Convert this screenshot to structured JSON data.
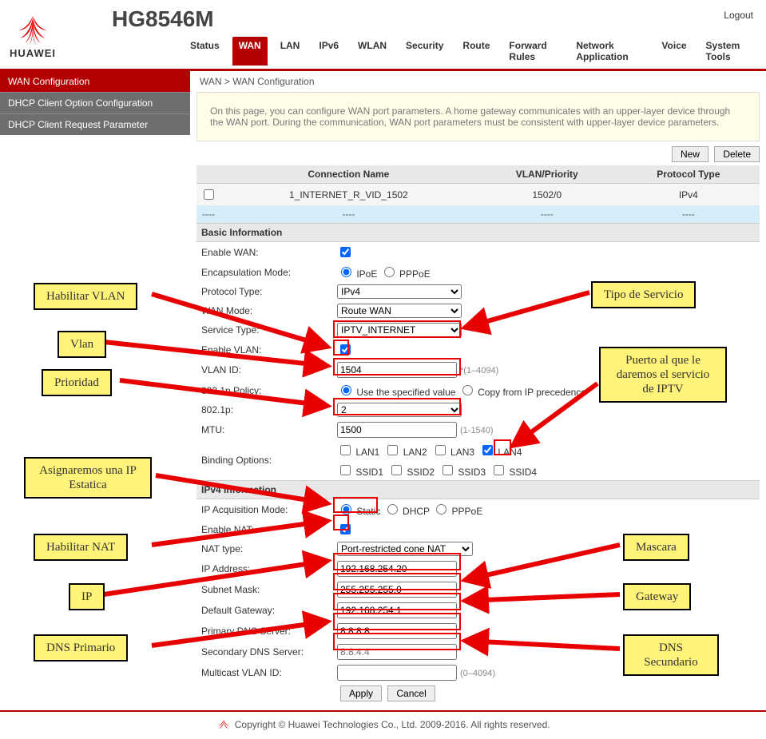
{
  "header": {
    "brand": "HUAWEI",
    "model": "HG8546M",
    "logout": "Logout"
  },
  "nav": {
    "items": [
      "Status",
      "WAN",
      "LAN",
      "IPv6",
      "WLAN",
      "Security",
      "Route",
      "Forward Rules",
      "Network Application",
      "Voice",
      "System Tools"
    ],
    "active_index": 1
  },
  "sidebar": {
    "items": [
      "WAN Configuration",
      "DHCP Client Option Configuration",
      "DHCP Client Request Parameter"
    ],
    "active_index": 0
  },
  "breadcrumb": "WAN > WAN Configuration",
  "info_text": "On this page, you can configure WAN port parameters. A home gateway communicates with an upper-layer device through the WAN port. During the communication, WAN port parameters must be consistent with upper-layer device parameters.",
  "buttons": {
    "new": "New",
    "delete": "Delete",
    "apply": "Apply",
    "cancel": "Cancel"
  },
  "conn_table": {
    "headers": [
      "",
      "Connection Name",
      "VLAN/Priority",
      "Protocol Type"
    ],
    "row": {
      "name": "1_INTERNET_R_VID_1502",
      "vlan": "1502/0",
      "proto": "IPv4"
    },
    "dash": "----"
  },
  "sections": {
    "basic": "Basic Information",
    "ipv4": "IPv4 Information"
  },
  "labels": {
    "enable_wan": "Enable WAN:",
    "encap": "Encapsulation Mode:",
    "proto": "Protocol Type:",
    "wan_mode": "WAN Mode:",
    "service_type": "Service Type:",
    "enable_vlan": "Enable VLAN:",
    "vlan_id": "VLAN ID:",
    "policy": "802.1p Policy:",
    "p8021": "802.1p:",
    "mtu": "MTU:",
    "binding": "Binding Options:",
    "ip_acq": "IP Acquisition Mode:",
    "enable_nat": "Enable NAT:",
    "nat_type": "NAT type:",
    "ip_addr": "IP Address:",
    "subnet": "Subnet Mask:",
    "gateway": "Default Gateway:",
    "dns1": "Primary DNS Server:",
    "dns2": "Secondary DNS Server:",
    "mcast": "Multicast VLAN ID:"
  },
  "values": {
    "encap_ipoe": "IPoE",
    "encap_pppoe": "PPPoE",
    "proto": "IPv4",
    "wan_mode": "Route WAN",
    "service_type": "IPTV_INTERNET",
    "vlan_id": "1504",
    "vlan_hint": "*(1–4094)",
    "policy_spec": "Use the specified value",
    "policy_copy": "Copy from IP precedence",
    "p8021": "2",
    "mtu": "1500",
    "mtu_hint": "(1-1540)",
    "lan": [
      "LAN1",
      "LAN2",
      "LAN3",
      "LAN4"
    ],
    "ssid": [
      "SSID1",
      "SSID2",
      "SSID3",
      "SSID4"
    ],
    "ip_static": "Static",
    "ip_dhcp": "DHCP",
    "ip_pppoe": "PPPoE",
    "nat_type": "Port-restricted cone NAT",
    "ip_addr": "192.168.254.20",
    "subnet": "255.255.255.0",
    "gateway": "192.168.254.1",
    "dns1": "8.8.8.8",
    "dns2_placeholder": "8.8.4.4",
    "mcast_hint": "(0–4094)"
  },
  "footer": "Copyright © Huawei Technologies Co., Ltd. 2009-2016. All rights reserved.",
  "annotations": {
    "habilitar_vlan": "Habilitar VLAN",
    "vlan": "Vlan",
    "prioridad": "Prioridad",
    "ip_estatica": "Asignaremos una IP Estatica",
    "habilitar_nat": "Habilitar NAT",
    "ip": "IP",
    "dns_primario": "DNS Primario",
    "tipo_servicio": "Tipo de Servicio",
    "puerto_iptv": "Puerto al que le daremos el servicio de IPTV",
    "mascara": "Mascara",
    "gateway": "Gateway",
    "dns_secundario": "DNS Secundario"
  }
}
